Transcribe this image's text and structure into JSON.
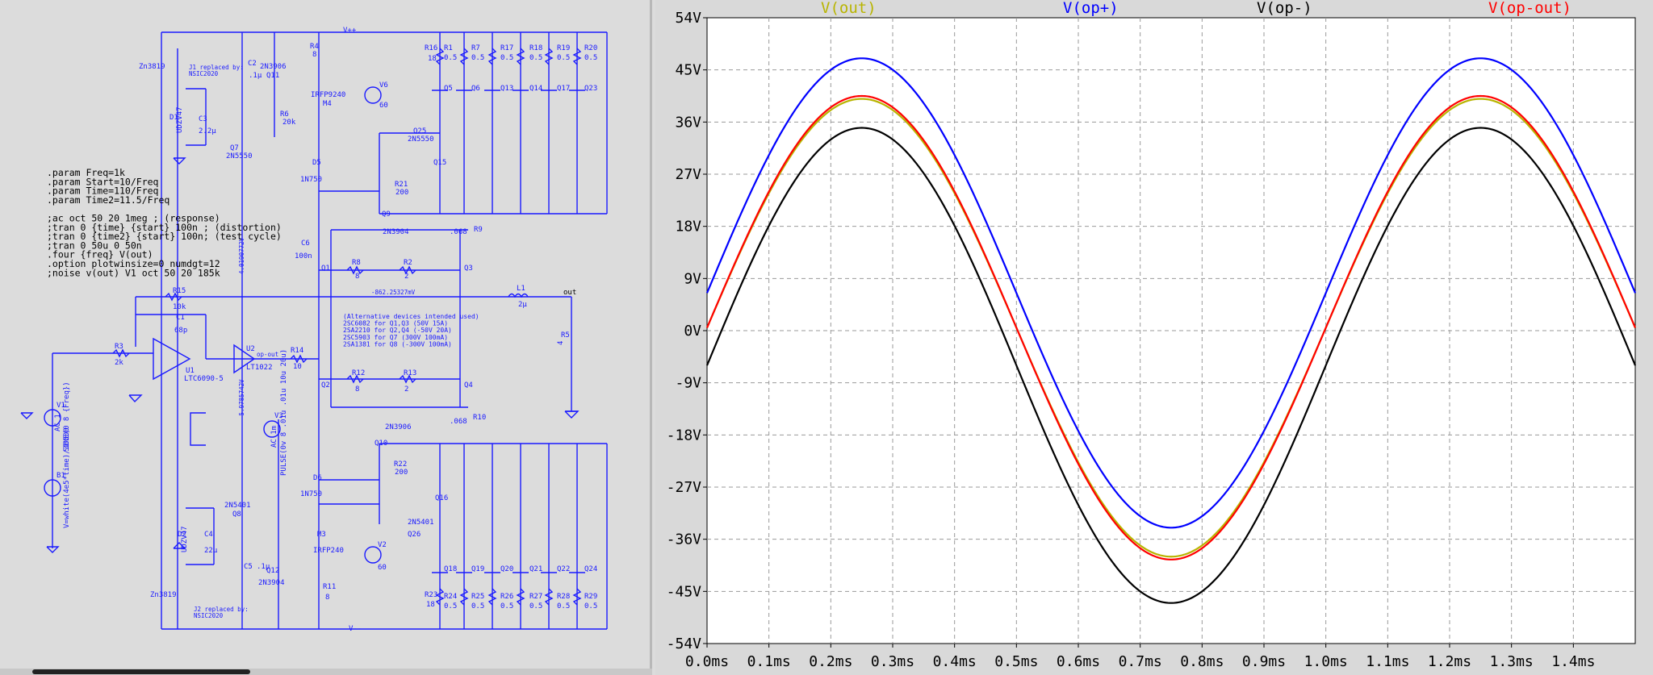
{
  "schematic": {
    "spice_directives": [
      ".param Freq=1k",
      ".param Start=10/Freq",
      ".param Time=110/Freq",
      ".param Time2=11.5/Freq",
      "",
      ";ac oct 50 20 1meg ;           (response)",
      ";tran 0 {time} {start} 100n ;  (distortion)",
      ";tran 0 {time2} {start} 100n;  (test cycle)",
      ";tran 0 50u 0 50n",
      ".four {freq} V(out)",
      ".option plotwinsize=0 numdgt=12",
      ";noise v(out) V1 oct 50 20 185k"
    ],
    "alt_devices": [
      "(Alternative devices intended used)",
      "2SC6082 for Q1,Q3 (50V  15A)",
      "2SA2210 for Q2,Q4 (-50V  20A)",
      "2SC5903 for Q7     (300V 100mA)",
      "2SA1381 for Q8     (-300V 100mA)"
    ],
    "labels": {
      "vpp": "V++",
      "vmm": "V--",
      "j1": "Zn3819",
      "j1_note1": "J1 replaced by:",
      "j1_note2": "NSIC2020",
      "j2": "Zn3819",
      "j2_note1": "J2 replaced by:",
      "j2_note2": "NSIC2020",
      "q11": "2N3906",
      "q11b": "Q11",
      "m4": "IRFP9240",
      "m4b": "M4",
      "r4": "R4",
      "r4v": "8",
      "c2": "C2",
      "c2v": ".1µ",
      "r6": "R6",
      "r6v": "20k",
      "d1": "D1",
      "d1v": "UDZV47",
      "c3": "C3",
      "c3v": "2.2µ",
      "q7": "Q7",
      "q7v": "2N5550",
      "d5": "D5",
      "d5v": "1N750",
      "v6": "V6",
      "v6v": "60",
      "q25": "Q25",
      "q25v": "2N5550",
      "q15": "Q15",
      "r21": "R21",
      "r21v": "200",
      "q9": "Q9",
      "q9v": "2N3904",
      "r9": "R9",
      "r9v": ".068",
      "c6": "C6",
      "c6v": "100n",
      "q1": "Q1",
      "r8": "R8",
      "r8v": "8",
      "r2": "R2",
      "r2v": "2",
      "q3": "Q3",
      "l1": "L1",
      "l1v": "2µ",
      "out": "out",
      "r15": "R15",
      "r15v": "10k",
      "c1": "C1",
      "c1v": "68p",
      "net1": "-862.25327mV",
      "net2": "4.0190772V",
      "net3": "-5.9785742V",
      "r3": "R3",
      "r3v": "2k",
      "u1": "U1",
      "u1v": "LTC6090-5",
      "u2": "U2",
      "u2v": "LT1022",
      "opout": "op-out",
      "r14": "R14",
      "r14v": "10",
      "r5": "R5",
      "r5v": "4",
      "q2": "Q2",
      "r12": "R12",
      "r12v": "8",
      "r13": "R13",
      "r13v": "2",
      "q4": "Q4",
      "r10": "R10",
      "r10v": ".068",
      "v1": "V1",
      "v1v": "SINE(0 8 {Freq})",
      "v1ac": "AC 1",
      "v3": "V3",
      "v3v": "PULSE(0v 8 .01u .01u 10u 20u)",
      "v3ac": "AC 1m",
      "b1": "B1",
      "b1v": "V=white(4e5*time)/36500",
      "q10": "Q10",
      "q10v": "2N3906",
      "r22": "R22",
      "r22v": "200",
      "q16": "Q16",
      "q26": "Q26",
      "q26v": "2N5401",
      "d6": "D6",
      "d6v": "1N750",
      "q8": "Q8",
      "q8v": "2N5401",
      "d2": "D2",
      "d2v": "UDZV47",
      "c4": "C4",
      "c4v": "22µ",
      "m3": "M3",
      "m3v": "IRFP240",
      "v2": "V2",
      "v2v": "60",
      "c5": "C5",
      "c5v": ".1µ",
      "q12": "Q12",
      "q12v": "2N3904",
      "r11": "R11",
      "r11v": "8",
      "r23": "R23",
      "r23v": "18",
      "r16": "R16",
      "r16v": "18"
    },
    "top_rows": {
      "resistors": [
        "R1",
        "R7",
        "R17",
        "R18",
        "R19",
        "R20"
      ],
      "transistors": [
        "Q5",
        "Q6",
        "Q13",
        "Q14",
        "Q17",
        "Q23"
      ],
      "value": "0.5"
    },
    "bottom_rows": {
      "resistors": [
        "R24",
        "R25",
        "R26",
        "R27",
        "R28",
        "R29"
      ],
      "transistors": [
        "Q18",
        "Q19",
        "Q20",
        "Q21",
        "Q22",
        "Q24"
      ],
      "value": "0.5"
    }
  },
  "plot": {
    "colors": {
      "background": "#ffffff",
      "grid": "#9a9a9a",
      "out": "#b8b400",
      "op_plus": "#0000ff",
      "op_minus": "#000000",
      "op_out": "#ff0000"
    },
    "chart_data": {
      "type": "line",
      "x_unit": "ms",
      "xlim": [
        0.0,
        1.5
      ],
      "ylim": [
        -54,
        54
      ],
      "x_ticks": [
        "0.0ms",
        "0.1ms",
        "0.2ms",
        "0.3ms",
        "0.4ms",
        "0.5ms",
        "0.6ms",
        "0.7ms",
        "0.8ms",
        "0.9ms",
        "1.0ms",
        "1.1ms",
        "1.2ms",
        "1.3ms",
        "1.4ms"
      ],
      "y_ticks": [
        "54V",
        "45V",
        "36V",
        "27V",
        "18V",
        "9V",
        "0V",
        "-9V",
        "-18V",
        "-27V",
        "-36V",
        "-45V",
        "-54V"
      ],
      "grid": true,
      "legend_position": "top",
      "series": [
        {
          "name": "V(out)",
          "color": "#b8b400",
          "offset": 0.5,
          "amplitude": 39.5,
          "frequency_khz": 1
        },
        {
          "name": "V(op+)",
          "color": "#0000ff",
          "offset": 6.5,
          "amplitude": 40.5,
          "frequency_khz": 1
        },
        {
          "name": "V(op-)",
          "color": "#000000",
          "offset": -6.0,
          "amplitude": 41.0,
          "frequency_khz": 1
        },
        {
          "name": "V(op-out)",
          "color": "#ff0000",
          "offset": 0.5,
          "amplitude": 40.0,
          "frequency_khz": 1
        }
      ]
    }
  }
}
